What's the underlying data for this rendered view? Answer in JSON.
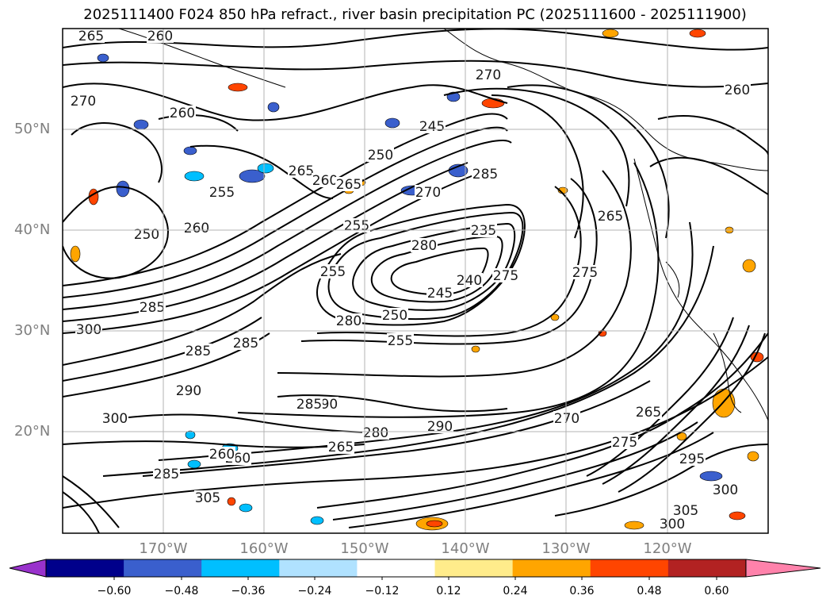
{
  "title": "2025111400 F024 850 hPa refract., river basin precipitation PC (2025111600 - 2025111900)",
  "lat_labels": [
    "50°N",
    "40°N",
    "30°N",
    "20°N"
  ],
  "lon_labels": [
    "170°W",
    "160°W",
    "150°W",
    "140°W",
    "130°W",
    "120°W"
  ],
  "colorbar": {
    "colors": [
      "#9932cc",
      "#00008b",
      "#3a5fcd",
      "#00bfff",
      "#b0e2ff",
      "#ffffff",
      "#ffec8b",
      "#ffa500",
      "#ff4500",
      "#b22222",
      "#ff82ab"
    ],
    "tick_labels": [
      "−0.60",
      "−0.48",
      "−0.36",
      "−0.24",
      "−0.12",
      "0.12",
      "0.24",
      "0.36",
      "0.48",
      "0.60"
    ]
  },
  "contour_labels": [
    "265",
    "260",
    "270",
    "260",
    "270",
    "260",
    "245",
    "250",
    "265",
    "260",
    "255",
    "250",
    "260",
    "265",
    "255",
    "280",
    "235",
    "245",
    "240",
    "250",
    "255",
    "275",
    "270",
    "285",
    "275",
    "265",
    "285",
    "300",
    "285",
    "255",
    "280",
    "285",
    "290",
    "280",
    "290",
    "270",
    "285",
    "265",
    "260",
    "260",
    "275",
    "295",
    "300",
    "305",
    "300",
    "305",
    "285",
    "290",
    "300",
    "265"
  ]
}
